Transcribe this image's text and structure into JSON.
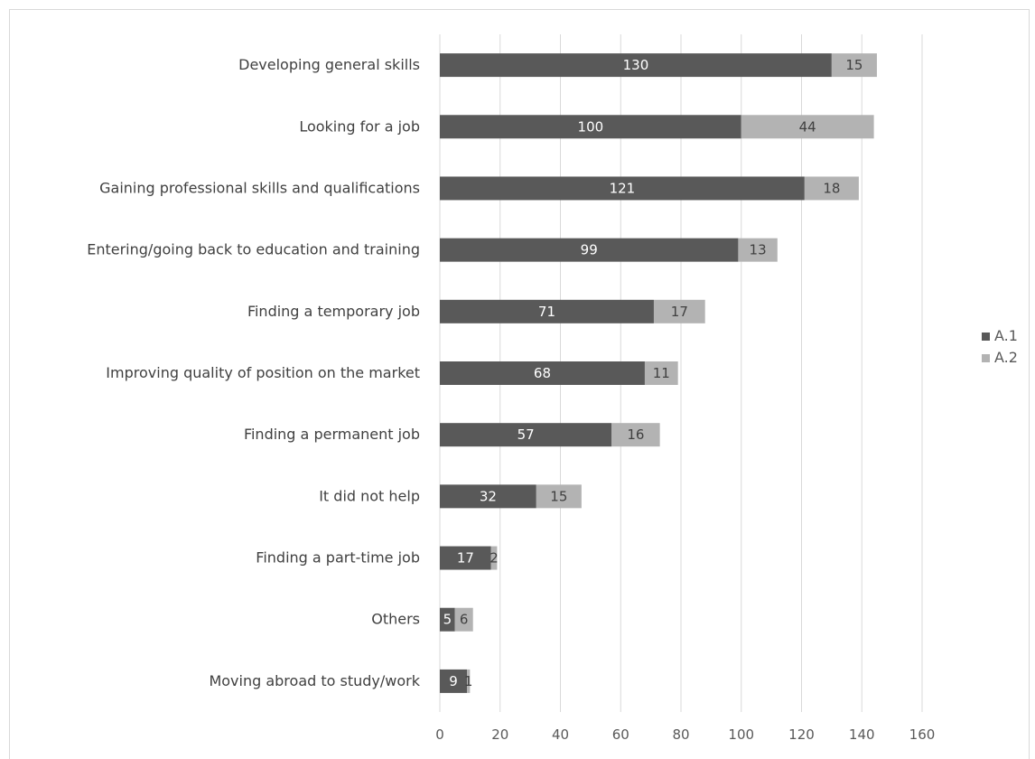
{
  "chart_data": {
    "type": "bar",
    "orientation": "horizontal",
    "stacked": true,
    "categories": [
      "Developing general skills",
      "Looking for a job",
      "Gaining professional skills and qualifications",
      "Entering/going back to education and training",
      "Finding a temporary job",
      "Improving quality of position on the market",
      "Finding a permanent job",
      "It did not help",
      "Finding a part-time job",
      "Others",
      "Moving abroad to study/work"
    ],
    "series": [
      {
        "name": "A.1",
        "color": "#595959",
        "label_color": "#ffffff",
        "values": [
          130,
          100,
          121,
          99,
          71,
          68,
          57,
          32,
          17,
          5,
          9
        ]
      },
      {
        "name": "A.2",
        "color": "#b3b3b3",
        "label_color": "#404040",
        "values": [
          15,
          44,
          18,
          13,
          17,
          11,
          16,
          15,
          2,
          6,
          1
        ]
      }
    ],
    "xlim": [
      0,
      160
    ],
    "xticks": [
      0,
      20,
      40,
      60,
      80,
      100,
      120,
      140,
      160
    ],
    "grid": true,
    "legend": "right",
    "data_labels": true
  }
}
